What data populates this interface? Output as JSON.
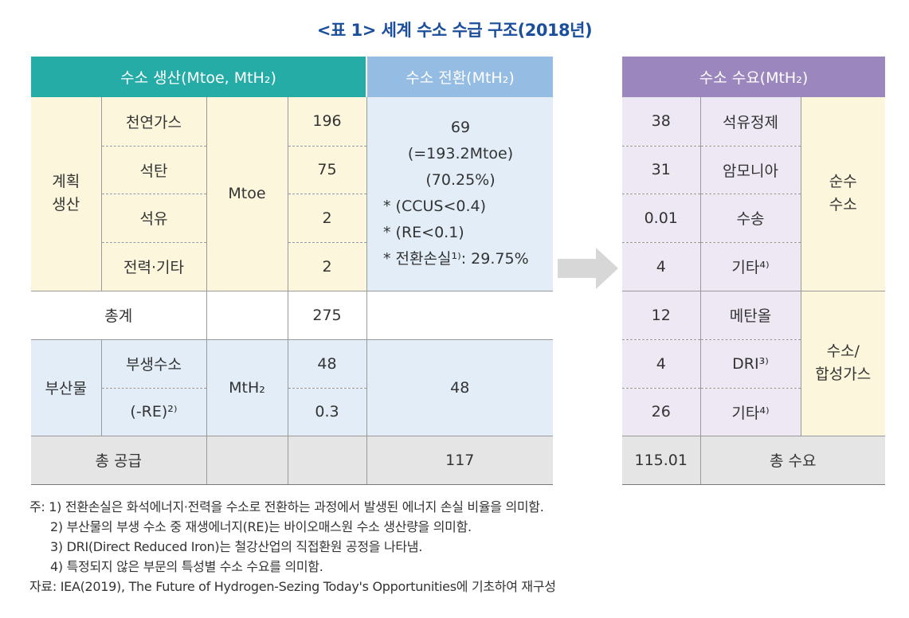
{
  "title": "<표 1> 세계 수소 수급 구조(2018년)",
  "colors": {
    "production_header": "#25aca6",
    "conversion_header": "#95bde4",
    "demand_header": "#9b87be",
    "production_body": "#fcf7dc",
    "conversion_body": "#e2edf7",
    "demand_body": "#ede8f4",
    "total_row": "#e5e5e5",
    "arrow": "#d7d7d7"
  },
  "production": {
    "header": "수소 생산(Mtoe, MtH₂)",
    "planned": {
      "group_label": "계획\n생산",
      "unit": "Mtoe",
      "rows": [
        {
          "name": "천연가스",
          "value": "196"
        },
        {
          "name": "석탄",
          "value": "75"
        },
        {
          "name": "석유",
          "value": "2"
        },
        {
          "name": "전력·기타",
          "value": "2"
        }
      ]
    },
    "subtotal": {
      "label": "총계",
      "value": "275"
    },
    "byproduct": {
      "group_label": "부산물",
      "unit": "MtH₂",
      "rows": [
        {
          "name": "부생수소",
          "value": "48"
        },
        {
          "name": "(-RE)²⁾",
          "value": "0.3"
        }
      ]
    },
    "total": {
      "label": "총  공급"
    }
  },
  "conversion": {
    "header": "수소 전환(MtH₂)",
    "planned_lines": [
      "69",
      "(=193.2Mtoe)",
      "(70.25%)"
    ],
    "planned_notes": [
      "* (CCUS<0.4)",
      "* (RE<0.1)",
      "* 전환손실¹⁾:  29.75%"
    ],
    "byproduct_value": "48",
    "total_value": "117"
  },
  "demand": {
    "header": "수소 수요(MtH₂)",
    "pure": {
      "group_label": "순수\n수소",
      "rows": [
        {
          "value": "38",
          "name": "석유정제"
        },
        {
          "value": "31",
          "name": "암모니아"
        },
        {
          "value": "0.01",
          "name": "수송"
        },
        {
          "value": "4",
          "name": "기타⁴⁾"
        }
      ]
    },
    "synthetic": {
      "group_label": "수소/\n합성가스",
      "rows": [
        {
          "value": "12",
          "name": "메탄올"
        },
        {
          "value": "4",
          "name": "DRI³⁾"
        },
        {
          "value": "26",
          "name": "기타⁴⁾"
        }
      ]
    },
    "total": {
      "value": "115.01",
      "label": "총  수요"
    }
  },
  "notes": [
    "주: 1) 전환손실은 화석에너지·전력을 수소로 전환하는 과정에서 발생된 에너지 손실 비율을 의미함.",
    "2) 부산물의 부생 수소 중 재생에너지(RE)는 바이오매스원 수소 생산량을 의미함.",
    "3) DRI(Direct Reduced Iron)는 철강산업의 직접환원 공정을 나타냄.",
    "4) 특정되지 않은 부문의 특성별 수소 수요를 의미함."
  ],
  "source": "자료: IEA(2019), The Future of Hydrogen-Sezing Today's Opportunities에 기초하여 재구성"
}
